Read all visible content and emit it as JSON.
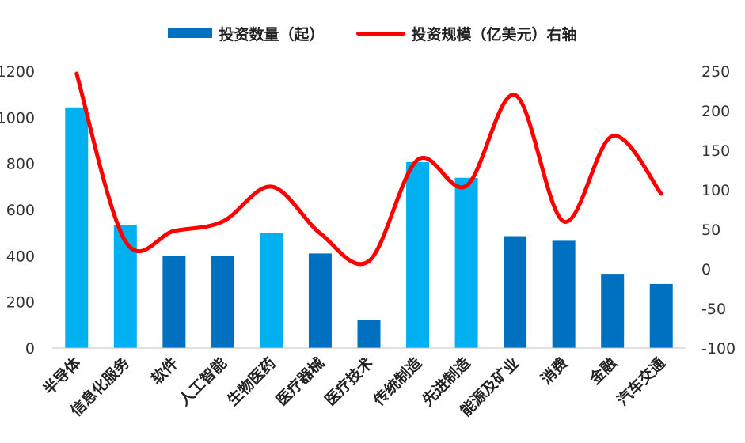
{
  "chart_data": {
    "type": "bar",
    "categories": [
      "半导体",
      "信息化服务",
      "软件",
      "人工智能",
      "生物医药",
      "医疗器械",
      "医疗技术",
      "传统制造",
      "先进制造",
      "能源及矿业",
      "消费",
      "金融",
      "汽车交通"
    ],
    "series": [
      {
        "name": "投资数量（起）",
        "type": "bar",
        "axis": "left",
        "values": [
          1043,
          535,
          401,
          401,
          500,
          410,
          122,
          806,
          738,
          485,
          465,
          322,
          278
        ]
      },
      {
        "name": "投资规模（亿美元）右轴",
        "type": "line",
        "axis": "right",
        "values": [
          247,
          35,
          48,
          60,
          104,
          45,
          10,
          138,
          105,
          220,
          60,
          168,
          95
        ]
      }
    ],
    "bar_colors": [
      "#00B0F0",
      "#00B0F0",
      "#0070C0",
      "#0070C0",
      "#00B0F0",
      "#0070C0",
      "#0070C0",
      "#00B0F0",
      "#00B0F0",
      "#0070C0",
      "#0070C0",
      "#0070C0",
      "#0070C0"
    ],
    "left_axis": {
      "min": 0,
      "max": 1200,
      "ticks": [
        "0",
        "200",
        "400",
        "600",
        "800",
        "1000",
        "1200"
      ]
    },
    "right_axis": {
      "min": -100,
      "max": 250,
      "ticks": [
        "-100",
        "-50",
        "0",
        "50",
        "100",
        "150",
        "200",
        "250"
      ]
    },
    "line_color": "#FF0000",
    "legend_bar_color": "#0070C0",
    "legend_position": "top"
  }
}
